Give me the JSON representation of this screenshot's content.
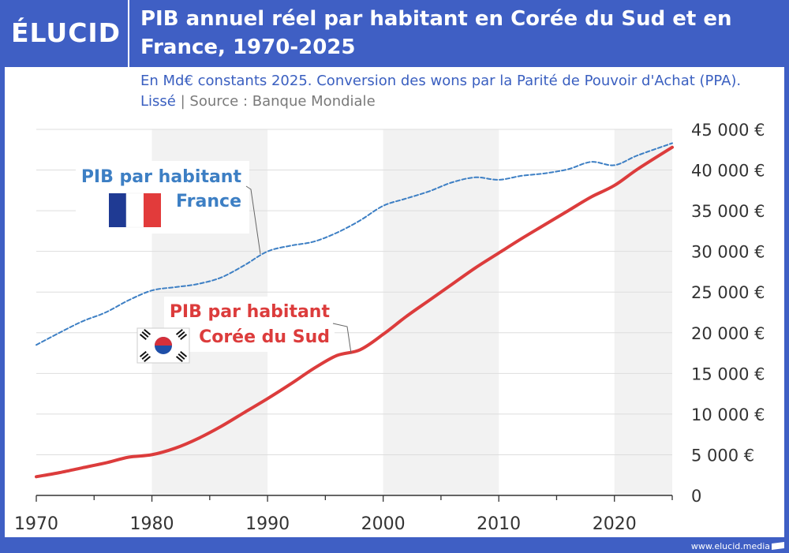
{
  "header": {
    "logo": "ÉLUCID",
    "title": "PIB annuel réel par habitant en Corée du Sud et en France, 1970-2025",
    "subtitle": "En Md€ constants 2025. Conversion des wons par la Parité de Pouvoir d'Achat (PPA). Lissé",
    "separator": "|",
    "source": "Source : Banque Mondiale"
  },
  "footer": {
    "site": "www.elucid.media"
  },
  "colors": {
    "brand": "#3f5fc4",
    "france": "#3d7fc4",
    "korea": "#dc3c3c",
    "band": "#f2f2f2",
    "grid": "#dddddd"
  },
  "chart_data": {
    "type": "line",
    "title": "PIB annuel réel par habitant en Corée du Sud et en France, 1970-2025",
    "xlabel": "",
    "ylabel": "",
    "xlim": [
      1970,
      2025
    ],
    "ylim": [
      0,
      45000
    ],
    "x_ticks": [
      "1970",
      "1980",
      "1990",
      "2000",
      "2010",
      "2020"
    ],
    "y_ticks": [
      "0",
      "5 000 €",
      "10 000 €",
      "15 000 €",
      "20 000 €",
      "25 000 €",
      "30 000 €",
      "35 000 €",
      "40 000 €",
      "45 000 €"
    ],
    "grid": true,
    "series": [
      {
        "name": "PIB par habitant France",
        "label_lines": [
          "PIB par habitant",
          "France"
        ],
        "style": "dashed",
        "color": "#3d7fc4",
        "x": [
          1970,
          1972,
          1974,
          1976,
          1978,
          1980,
          1982,
          1984,
          1986,
          1988,
          1990,
          1992,
          1994,
          1996,
          1998,
          2000,
          2002,
          2004,
          2006,
          2008,
          2010,
          2012,
          2014,
          2016,
          2018,
          2020,
          2022,
          2025
        ],
        "values": [
          18500,
          20000,
          21400,
          22500,
          24000,
          25200,
          25600,
          26000,
          26800,
          28300,
          30000,
          30700,
          31200,
          32300,
          33800,
          35600,
          36500,
          37400,
          38500,
          39100,
          38800,
          39300,
          39600,
          40100,
          41000,
          40600,
          41800,
          43300
        ]
      },
      {
        "name": "PIB par habitant Corée du Sud",
        "label_lines": [
          "PIB par habitant",
          "Corée du Sud"
        ],
        "style": "solid",
        "color": "#dc3c3c",
        "x": [
          1970,
          1972,
          1974,
          1976,
          1978,
          1980,
          1982,
          1984,
          1986,
          1988,
          1990,
          1992,
          1994,
          1996,
          1998,
          2000,
          2002,
          2004,
          2006,
          2008,
          2010,
          2012,
          2014,
          2016,
          2018,
          2020,
          2022,
          2025
        ],
        "values": [
          2300,
          2800,
          3400,
          4000,
          4700,
          5000,
          5800,
          7000,
          8500,
          10200,
          11900,
          13700,
          15600,
          17200,
          17900,
          19800,
          22000,
          24000,
          26000,
          28000,
          29800,
          31600,
          33300,
          35000,
          36700,
          38100,
          40100,
          42800
        ]
      }
    ],
    "annotations": [
      "flag-france",
      "flag-south-korea"
    ]
  }
}
